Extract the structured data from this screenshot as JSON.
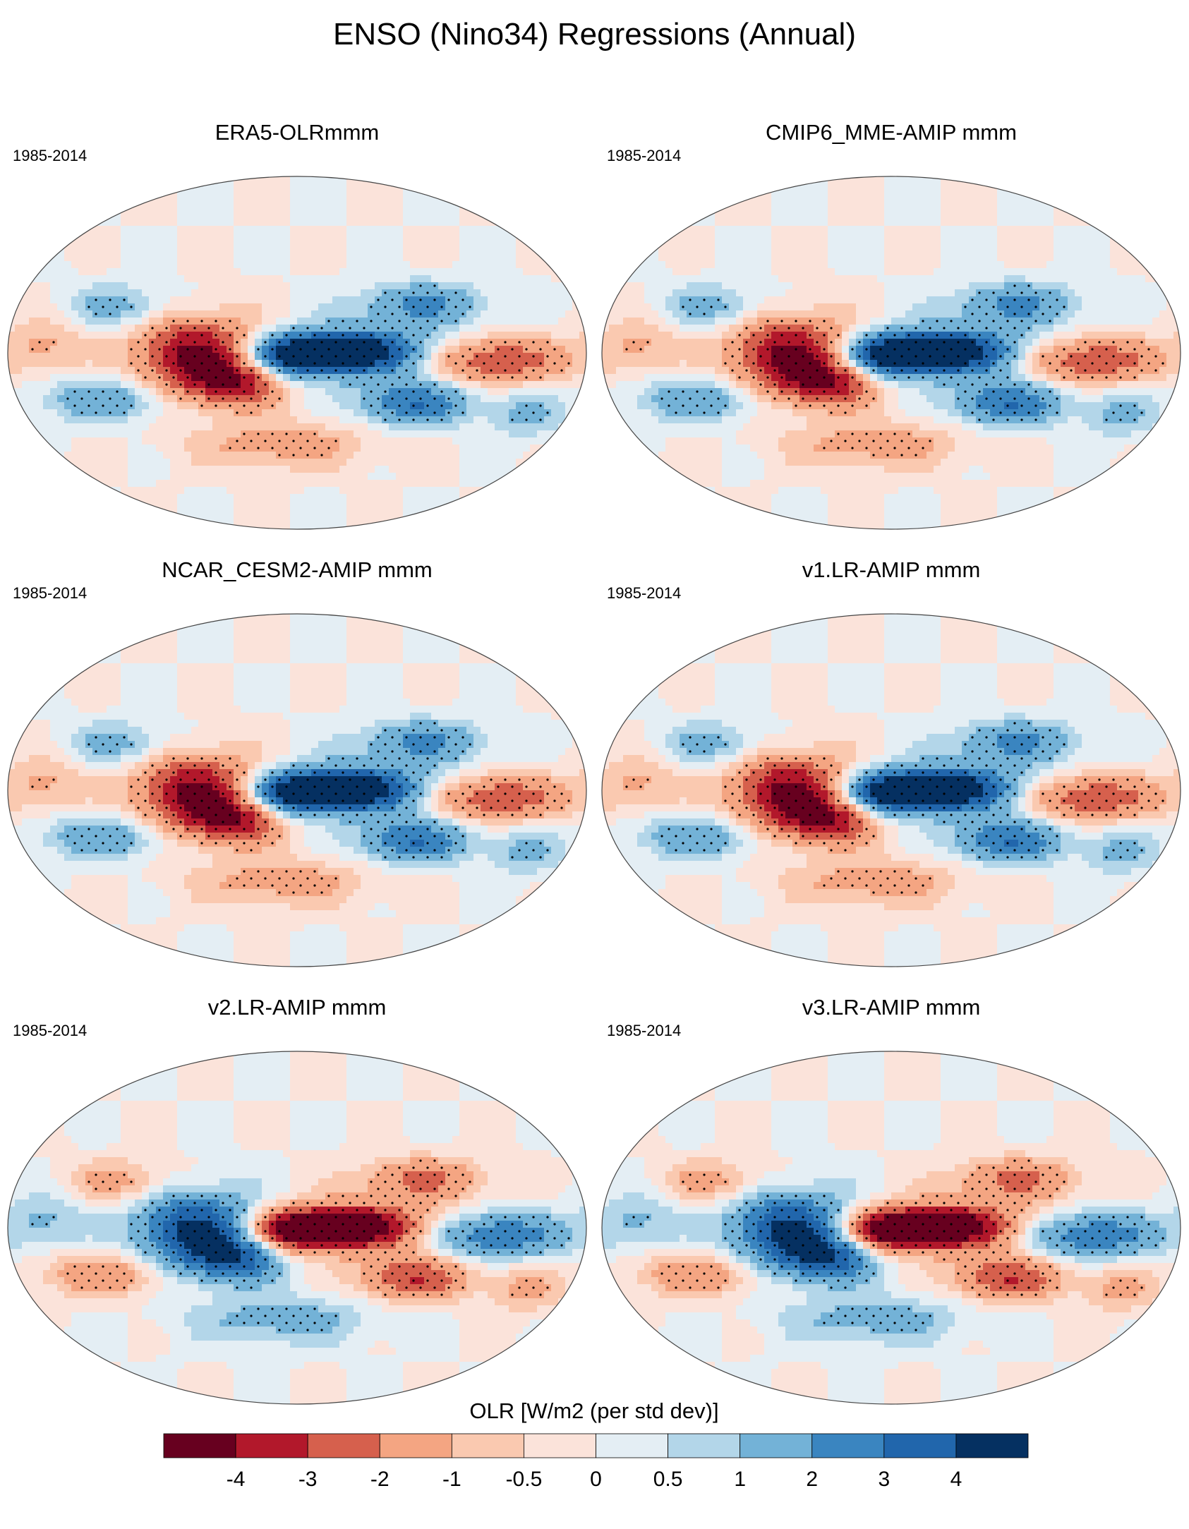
{
  "chart_data": {
    "type": "heatmap",
    "title": "ENSO (Nino34) Regressions (Annual)",
    "projection": "Robinson (global)",
    "stippling": "dots mark statistically significant regions",
    "panels": [
      {
        "name": "ERA5-OLRmmm",
        "period": "1985-2014",
        "pattern_sign": 1
      },
      {
        "name": "CMIP6_MME-AMIP  mmm",
        "period": "1985-2014",
        "pattern_sign": 1
      },
      {
        "name": "NCAR_CESM2-AMIP  mmm",
        "period": "1985-2014",
        "pattern_sign": 1
      },
      {
        "name": "v1.LR-AMIP  mmm",
        "period": "1985-2014",
        "pattern_sign": 1
      },
      {
        "name": "v2.LR-AMIP  mmm",
        "period": "1985-2014",
        "pattern_sign": -1
      },
      {
        "name": "v3.LR-AMIP  mmm",
        "period": "1985-2014",
        "pattern_sign": -1
      }
    ],
    "colorbar": {
      "label": "OLR [W/m2 (per std dev)]",
      "tick_labels": [
        "-4",
        "-3",
        "-2",
        "-1",
        "-0.5",
        "0",
        "0.5",
        "1",
        "2",
        "3",
        "4"
      ],
      "levels": [
        -4,
        -3,
        -2,
        -1,
        -0.5,
        0,
        0.5,
        1,
        2,
        3,
        4
      ],
      "colors": [
        "#67001f",
        "#b2182b",
        "#d6604d",
        "#f4a582",
        "#fac9b0",
        "#fbe3da",
        "#e4eef4",
        "#b3d6e9",
        "#73b2d7",
        "#3a85c0",
        "#2166ac",
        "#053061"
      ]
    }
  }
}
